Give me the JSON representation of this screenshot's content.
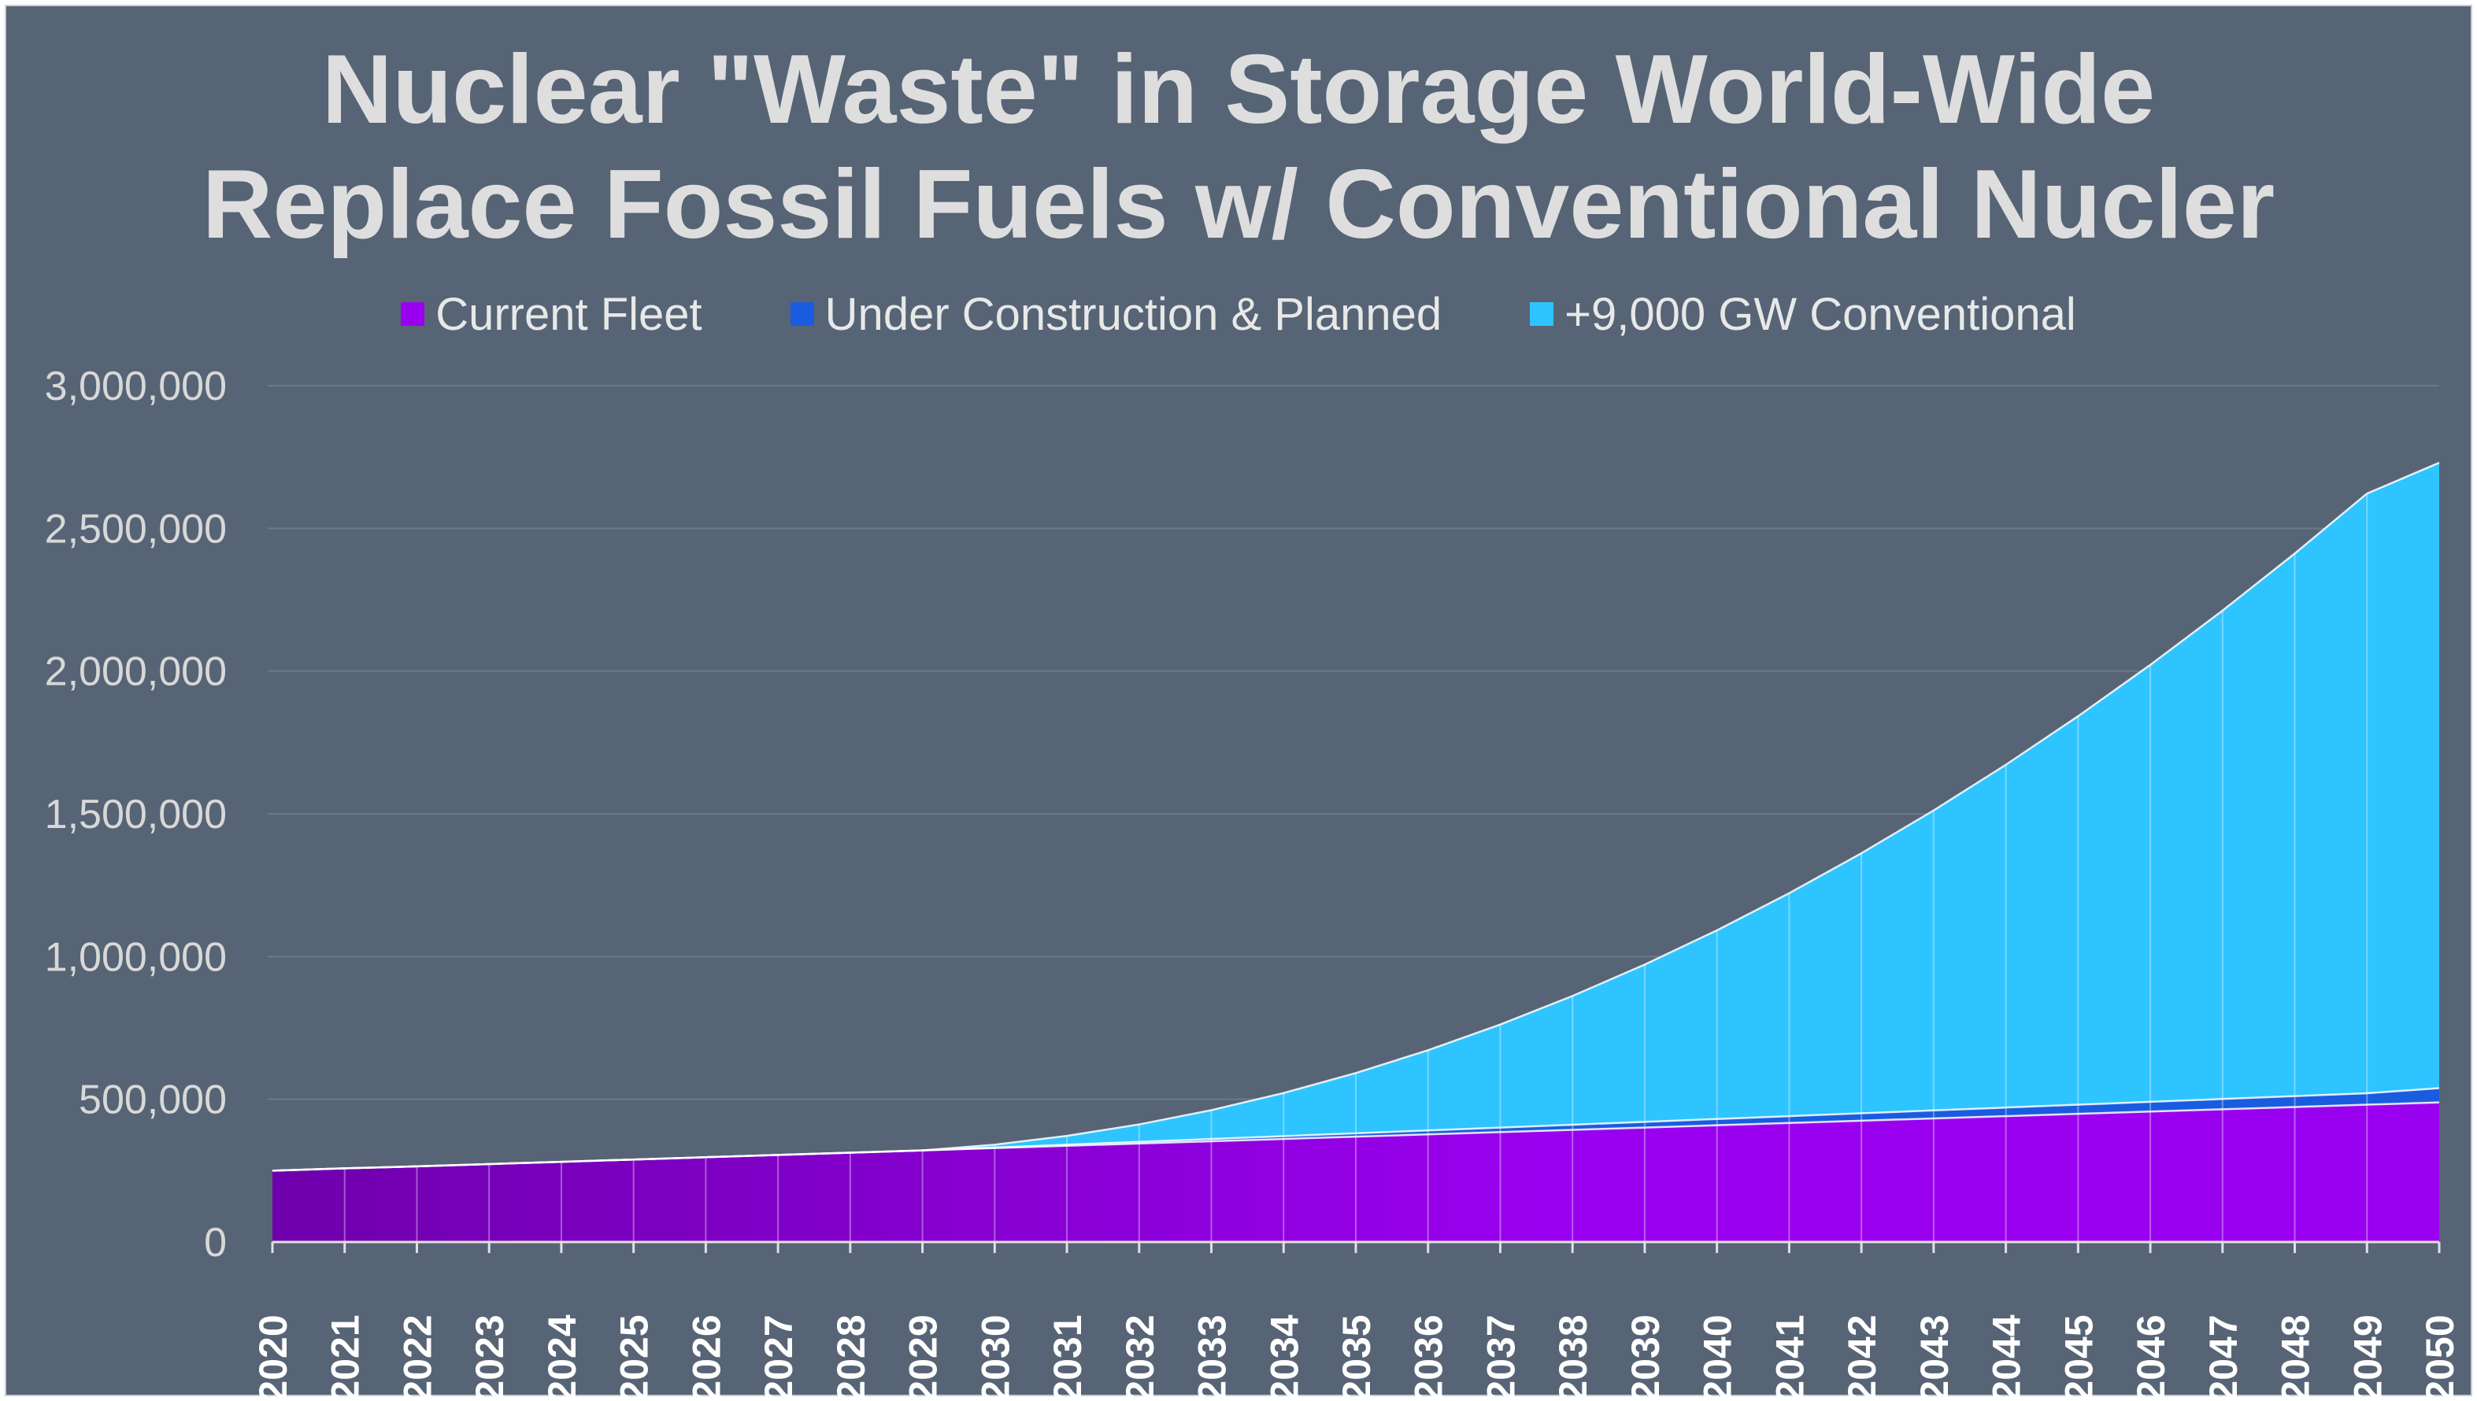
{
  "chart_data": {
    "type": "area",
    "stacked": true,
    "title_lines": [
      "Nuclear \"Waste\" in Storage World-Wide",
      "Replace Fossil Fuels w/ Conventional Nucler"
    ],
    "xlabel": "",
    "ylabel": "",
    "ylim": [
      0,
      3000000
    ],
    "yticks": [
      0,
      500000,
      1000000,
      1500000,
      2000000,
      2500000,
      3000000
    ],
    "ytick_labels": [
      "0",
      "500,000",
      "1,000,000",
      "1,500,000",
      "2,000,000",
      "2,500,000",
      "3,000,000"
    ],
    "grid": true,
    "legend_position": "top-center",
    "categories": [
      "2020",
      "2021",
      "2022",
      "2023",
      "2024",
      "2025",
      "2026",
      "2027",
      "2028",
      "2029",
      "2030",
      "2031",
      "2032",
      "2033",
      "2034",
      "2035",
      "2036",
      "2037",
      "2038",
      "2039",
      "2040",
      "2041",
      "2042",
      "2043",
      "2044",
      "2045",
      "2046",
      "2047",
      "2048",
      "2049",
      "2050"
    ],
    "series": [
      {
        "name": "Current Fleet",
        "color": "#9a00f0",
        "values": [
          250000,
          258000,
          265000,
          273000,
          281000,
          289000,
          297000,
          305000,
          313000,
          321000,
          329000,
          337000,
          345000,
          353000,
          361000,
          369000,
          377000,
          385000,
          393000,
          401000,
          409000,
          417000,
          425000,
          433000,
          441000,
          449000,
          457000,
          465000,
          473000,
          481000,
          489000
        ]
      },
      {
        "name": "Under Construction & Planned",
        "color": "#1a5ce0",
        "values": [
          0,
          0,
          0,
          0,
          0,
          0,
          0,
          0,
          0,
          0,
          2000,
          4000,
          6000,
          8000,
          10000,
          12000,
          14000,
          16000,
          18000,
          20000,
          22000,
          24000,
          26000,
          28000,
          30000,
          32000,
          34000,
          36000,
          38000,
          40000,
          50000
        ]
      },
      {
        "name": "+9,000 GW Conventional",
        "color": "#2ec4ff",
        "values": [
          0,
          0,
          0,
          0,
          0,
          0,
          0,
          0,
          0,
          0,
          10000,
          31000,
          61000,
          101000,
          151000,
          211000,
          281000,
          361000,
          451000,
          551000,
          661000,
          781000,
          911000,
          1051000,
          1201000,
          1361000,
          1531000,
          1711000,
          1901000,
          2101000,
          2191000
        ]
      }
    ]
  }
}
